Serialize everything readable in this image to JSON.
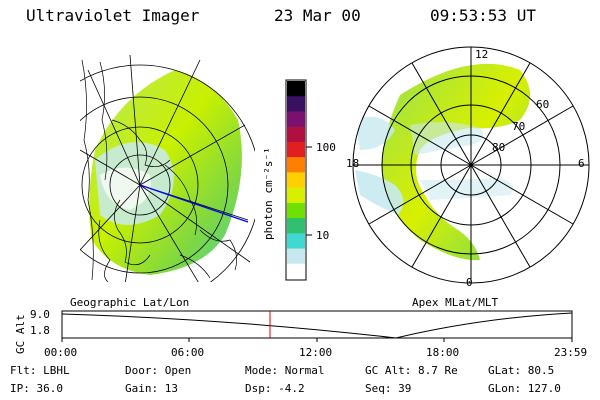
{
  "header": {
    "instrument": "Ultraviolet Imager",
    "date": "23 Mar 00",
    "time": "09:53:53 UT"
  },
  "colorbar": {
    "unit_label": "photon cm⁻²s⁻¹",
    "tick_labels": [
      "100",
      "10"
    ],
    "colors": [
      "#000000",
      "#3a1060",
      "#7a1070",
      "#b01040",
      "#e02020",
      "#ff8000",
      "#ffd000",
      "#d8f000",
      "#70e000",
      "#30c070",
      "#40d8d0",
      "#c8e8f0",
      "#ffffff"
    ]
  },
  "left_panel": {
    "caption": "Geographic Lat/Lon"
  },
  "right_panel": {
    "caption": "Apex MLat/MLT",
    "mlt_labels": [
      "12",
      "18",
      "6",
      "0"
    ],
    "lat_labels": [
      "60",
      "70",
      "80"
    ]
  },
  "timeline": {
    "axis_label": "GC Alt",
    "y_ticks": [
      "9.0",
      "1.8"
    ],
    "x_ticks": [
      "00:00",
      "06:00",
      "12:00",
      "18:00",
      "23:59"
    ],
    "marker_color": "#e00000"
  },
  "status": {
    "row1": [
      {
        "label": "Flt:",
        "value": "LBHL"
      },
      {
        "label": "Door:",
        "value": "Open"
      },
      {
        "label": "Mode:",
        "value": "Normal"
      },
      {
        "label": "GC Alt:",
        "value": "8.7 Re"
      },
      {
        "label": "GLat:",
        "value": "80.5"
      }
    ],
    "row2": [
      {
        "label": "IP:",
        "value": "36.0"
      },
      {
        "label": "Gain:",
        "value": "13"
      },
      {
        "label": "Dsp:",
        "value": "-4.2"
      },
      {
        "label": "Seq:",
        "value": "39"
      },
      {
        "label": "GLon:",
        "value": "127.0"
      }
    ]
  }
}
